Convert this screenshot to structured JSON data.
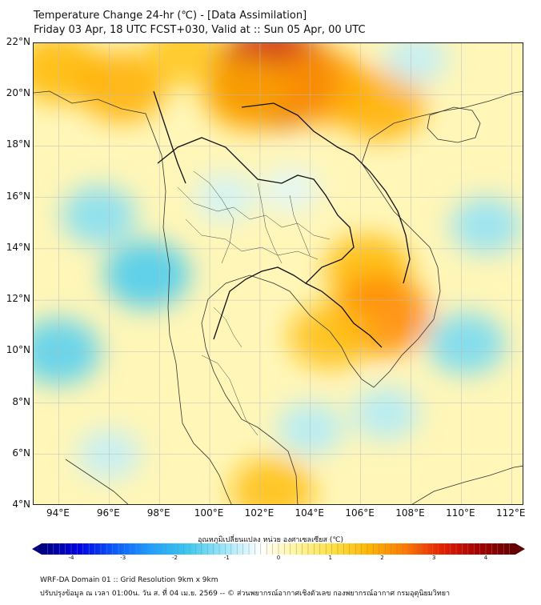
{
  "header": {
    "title_line1": "Temperature Change 24-hr (℃) - [Data Assimilation]",
    "title_line2": "Friday 03 Apr, 18 UTC FCST+030, Valid at :: Sun 05 Apr, 00 UTC"
  },
  "axes": {
    "lat_labels": [
      "22°N",
      "20°N",
      "18°N",
      "16°N",
      "14°N",
      "12°N",
      "10°N",
      "8°N",
      "6°N",
      "4°N"
    ],
    "lon_labels": [
      "94°E",
      "96°E",
      "98°E",
      "100°E",
      "102°E",
      "104°E",
      "106°E",
      "108°E",
      "110°E",
      "112°E"
    ],
    "lat_range": [
      4,
      22
    ],
    "lon_range": [
      93,
      112.5
    ]
  },
  "colorbar": {
    "title": "อุณหภูมิเปลี่ยนแปลง หน่วย องศาเซลเซียส (℃)",
    "ticks": [
      "-4",
      "-3",
      "-2",
      "-1",
      "0",
      "1",
      "2",
      "3",
      "4"
    ],
    "range": [
      -4,
      4
    ],
    "colors": [
      "#00007f",
      "#0000e6",
      "#0a5aff",
      "#1ea0ff",
      "#3cc8f0",
      "#9ae6fa",
      "#ffffff",
      "#fff59a",
      "#ffe040",
      "#ffb400",
      "#ff7800",
      "#e61e00",
      "#a50000",
      "#640000"
    ]
  },
  "footer": {
    "line1": "WRF-DA Domain 01 :: Grid Resolution 9km x 9km",
    "line2": "ปรับปรุงข้อมูล ณ เวลา 01:00น. วัน ส. ที่ 04 เม.ย. 2569 -- © ส่วนพยากรณ์อากาศเชิงตัวเลข กองพยากรณ์อากาศ กรมอุตุนิยมวิทยา"
  },
  "field": {
    "background_value": 0.4,
    "anomalies": [
      {
        "lon": 102.5,
        "lat": 20.7,
        "value": 3.0
      },
      {
        "lon": 101.5,
        "lat": 20.0,
        "value": 1.6
      },
      {
        "lon": 104.5,
        "lat": 20.3,
        "value": 1.8
      },
      {
        "lon": 106.8,
        "lat": 19.6,
        "value": 1.6
      },
      {
        "lon": 94.0,
        "lat": 21.0,
        "value": 1.5
      },
      {
        "lon": 96.5,
        "lat": 20.3,
        "value": 1.6
      },
      {
        "lon": 99.0,
        "lat": 21.6,
        "value": 1.3
      },
      {
        "lon": 106.3,
        "lat": 13.2,
        "value": 1.5
      },
      {
        "lon": 106.8,
        "lat": 11.4,
        "value": 2.0
      },
      {
        "lon": 104.8,
        "lat": 10.6,
        "value": 1.4
      },
      {
        "lon": 102.5,
        "lat": 4.6,
        "value": 1.4
      },
      {
        "lon": 97.5,
        "lat": 13.0,
        "value": -1.5
      },
      {
        "lon": 94.0,
        "lat": 10.0,
        "value": -1.4
      },
      {
        "lon": 95.6,
        "lat": 15.3,
        "value": -1.1
      },
      {
        "lon": 110.2,
        "lat": 10.3,
        "value": -1.2
      },
      {
        "lon": 111.0,
        "lat": 14.9,
        "value": -1.0
      },
      {
        "lon": 107.0,
        "lat": 7.6,
        "value": -0.8
      },
      {
        "lon": 108.2,
        "lat": 21.4,
        "value": -0.7
      },
      {
        "lon": 100.6,
        "lat": 16.0,
        "value": -0.6
      },
      {
        "lon": 103.2,
        "lat": 16.3,
        "value": -0.5
      },
      {
        "lon": 104.0,
        "lat": 7.0,
        "value": -0.8
      },
      {
        "lon": 96.0,
        "lat": 6.0,
        "value": -0.7
      }
    ]
  }
}
